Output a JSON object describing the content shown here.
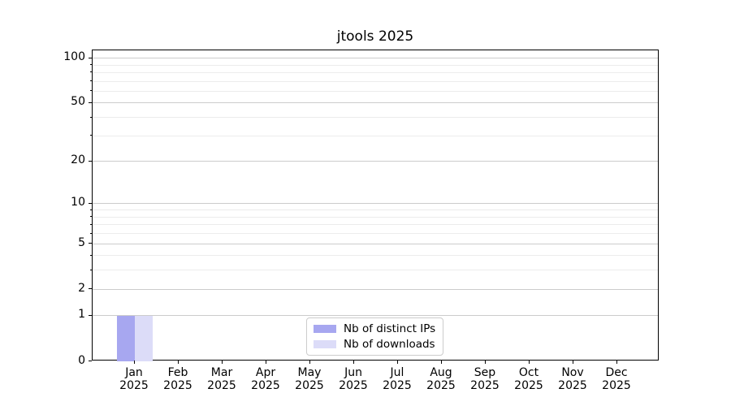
{
  "chart_data": {
    "type": "bar",
    "title": "jtools 2025",
    "categories": [
      "Jan",
      "Feb",
      "Mar",
      "Apr",
      "May",
      "Jun",
      "Jul",
      "Aug",
      "Sep",
      "Oct",
      "Nov",
      "Dec"
    ],
    "category_year": "2025",
    "series": [
      {
        "name": "Nb of distinct IPs",
        "color": "#a7a7f0",
        "values": [
          1,
          0,
          0,
          0,
          0,
          0,
          0,
          0,
          0,
          0,
          0,
          0
        ]
      },
      {
        "name": "Nb of downloads",
        "color": "#dcdcf8",
        "values": [
          1,
          0,
          0,
          0,
          0,
          0,
          0,
          0,
          0,
          0,
          0,
          0
        ]
      }
    ],
    "xlabel": "",
    "ylabel": "",
    "y_scale": "log10(1+y)",
    "y_major_ticks": [
      0,
      1,
      2,
      5,
      10,
      20,
      50,
      100
    ],
    "y_minor_ticks": [
      3,
      4,
      6,
      7,
      8,
      9,
      30,
      40,
      60,
      70,
      80,
      90
    ],
    "ylim": [
      0,
      112.7
    ],
    "grid": "both",
    "legend": {
      "location": "lower center",
      "frame": true
    }
  },
  "colors": {
    "major_grid": "#cccccc",
    "minor_grid": "#ececec",
    "spine": "#000000",
    "background": "#ffffff"
  }
}
